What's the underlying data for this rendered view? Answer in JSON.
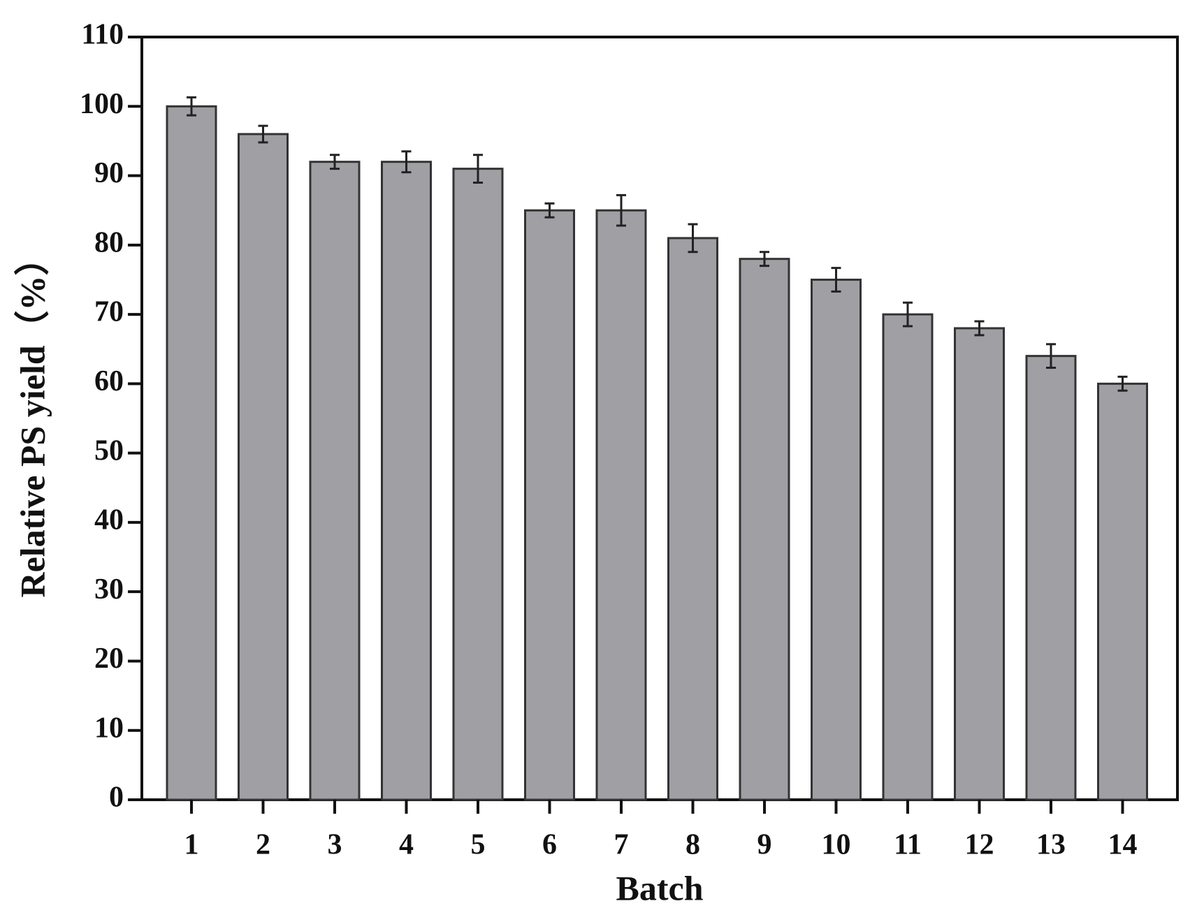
{
  "chart_data": {
    "type": "bar",
    "x_label": "Batch",
    "y_label": "Relative PS yield（%）",
    "categories": [
      "1",
      "2",
      "3",
      "4",
      "5",
      "6",
      "7",
      "8",
      "9",
      "10",
      "11",
      "12",
      "13",
      "14"
    ],
    "values": [
      100,
      96,
      92,
      92,
      91,
      85,
      85,
      81,
      78,
      75,
      70,
      68,
      64,
      60
    ],
    "errors": [
      1.3,
      1.2,
      1.0,
      1.5,
      2.0,
      1.0,
      2.2,
      2.0,
      1.0,
      1.7,
      1.7,
      1.0,
      1.7,
      1.0
    ],
    "color": "#a09fa4",
    "ylim": [
      0,
      110
    ],
    "yticks": [
      0,
      10,
      20,
      30,
      40,
      50,
      60,
      70,
      80,
      90,
      100,
      110
    ]
  }
}
